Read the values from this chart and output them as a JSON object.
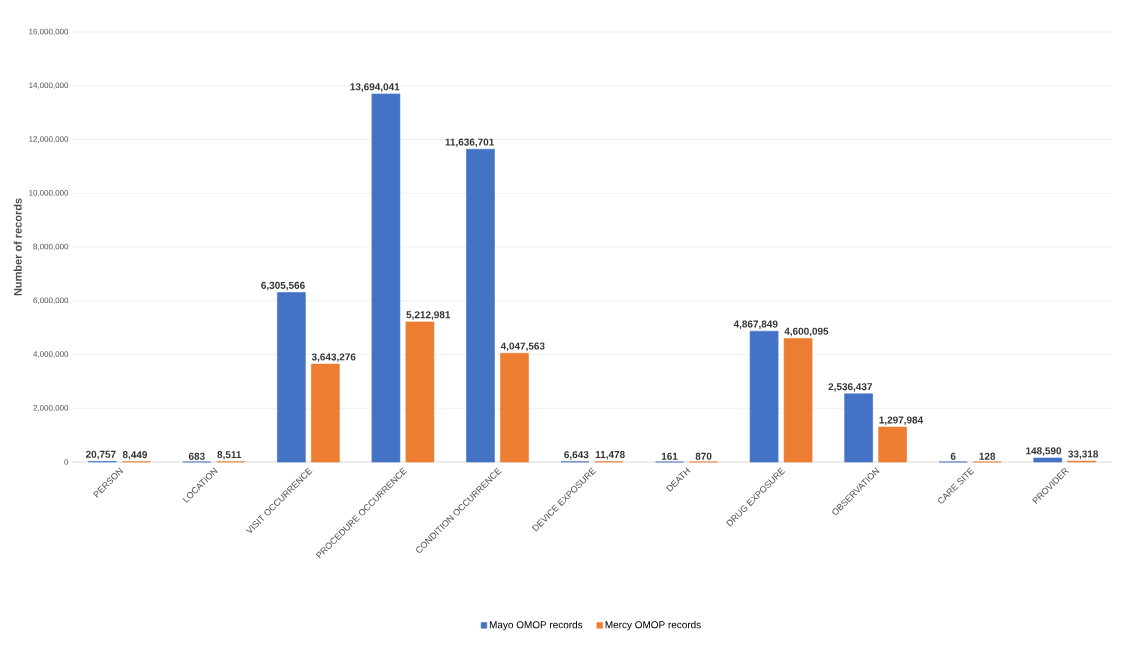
{
  "chart_data": {
    "type": "bar",
    "ylabel": "Number of records",
    "categories": [
      "PERSON",
      "LOCATION",
      "VISIT OCCURRENCE",
      "PROCEDURE OCCURRENCE",
      "CONDITION OCCURRENCE",
      "DEVICE EXPOSURE",
      "DEATH",
      "DRUG EXPOSURE",
      "OBSERVATION",
      "CARE SITE",
      "PROVIDER"
    ],
    "series": [
      {
        "name": "Mayo OMOP records",
        "color": "#4472c4",
        "values": [
          20757,
          683,
          6305566,
          13694041,
          11636701,
          6643,
          161,
          4867849,
          2536437,
          6,
          148590
        ],
        "value_labels": [
          "20,757",
          "683",
          "6,305,566",
          "13,694,041",
          "11,636,701",
          "6,643",
          "161",
          "4,867,849",
          "2,536,437",
          "6",
          "148,590"
        ]
      },
      {
        "name": "Mercy OMOP records",
        "color": "#ed7d31",
        "values": [
          8449,
          8511,
          3643276,
          5212981,
          4047563,
          11478,
          870,
          4600095,
          1297984,
          128,
          33318
        ],
        "value_labels": [
          "8,449",
          "8,511",
          "3,643,276",
          "5,212,981",
          "4,047,563",
          "11,478",
          "870",
          "4,600,095",
          "1,297,984",
          "128",
          "33,318"
        ]
      }
    ],
    "ylim": [
      0,
      16000000
    ],
    "yticks": [
      {
        "value": 0,
        "label": "0"
      },
      {
        "value": 2000000,
        "label": "2,000,000"
      },
      {
        "value": 4000000,
        "label": "4,000,000"
      },
      {
        "value": 6000000,
        "label": "6,000,000"
      },
      {
        "value": 8000000,
        "label": "8,000,000"
      },
      {
        "value": 10000000,
        "label": "10,000,000"
      },
      {
        "value": 12000000,
        "label": "12,000,000"
      },
      {
        "value": 14000000,
        "label": "14,000,000"
      },
      {
        "value": 16000000,
        "label": "16,000,000"
      }
    ],
    "grid": "y",
    "legend": "bottom"
  }
}
